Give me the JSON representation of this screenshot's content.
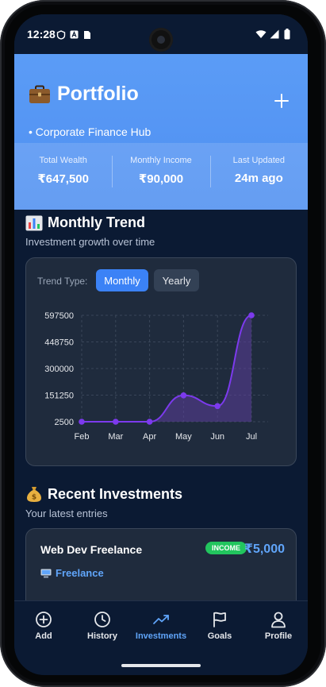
{
  "status_bar": {
    "time": "12:28"
  },
  "header": {
    "title": "Portfolio",
    "subtitle": "• Corporate Finance Hub",
    "stats": [
      {
        "label": "Total Wealth",
        "value": "₹647,500"
      },
      {
        "label": "Monthly Income",
        "value": "₹90,000"
      },
      {
        "label": "Last Updated",
        "value": "24m ago"
      }
    ]
  },
  "trend": {
    "title": "Monthly Trend",
    "subtitle": "Investment growth over time",
    "trend_type_label": "Trend Type:",
    "toggle_monthly": "Monthly",
    "toggle_yearly": "Yearly"
  },
  "chart_data": {
    "type": "area",
    "categories": [
      "Feb",
      "Mar",
      "Apr",
      "May",
      "Jun",
      "Jul"
    ],
    "values": [
      2500,
      2500,
      2500,
      150000,
      90000,
      597500
    ],
    "y_ticks": [
      "597500",
      "448750",
      "300000",
      "151250",
      "2500"
    ],
    "ylim": [
      2500,
      597500
    ],
    "grid": true,
    "colors": {
      "line": "#7c3aed",
      "fill": "#5b3e9a",
      "point": "#7c3aed"
    }
  },
  "recent": {
    "title": "Recent Investments",
    "subtitle": "Your latest entries",
    "items": [
      {
        "name": "Web Dev Freelance",
        "badge": "INCOME",
        "amount": "₹5,000",
        "category": "Freelance"
      }
    ]
  },
  "nav": {
    "items": [
      {
        "label": "Add",
        "icon": "plus-circle-icon"
      },
      {
        "label": "History",
        "icon": "clock-icon"
      },
      {
        "label": "Investments",
        "icon": "trending-up-icon"
      },
      {
        "label": "Goals",
        "icon": "flag-icon"
      },
      {
        "label": "Profile",
        "icon": "user-icon"
      }
    ],
    "active": "Investments"
  },
  "colors": {
    "header": "#5b9cf6",
    "accent": "#3b82f6",
    "income": "#22c55e",
    "background": "#0b1a33"
  }
}
